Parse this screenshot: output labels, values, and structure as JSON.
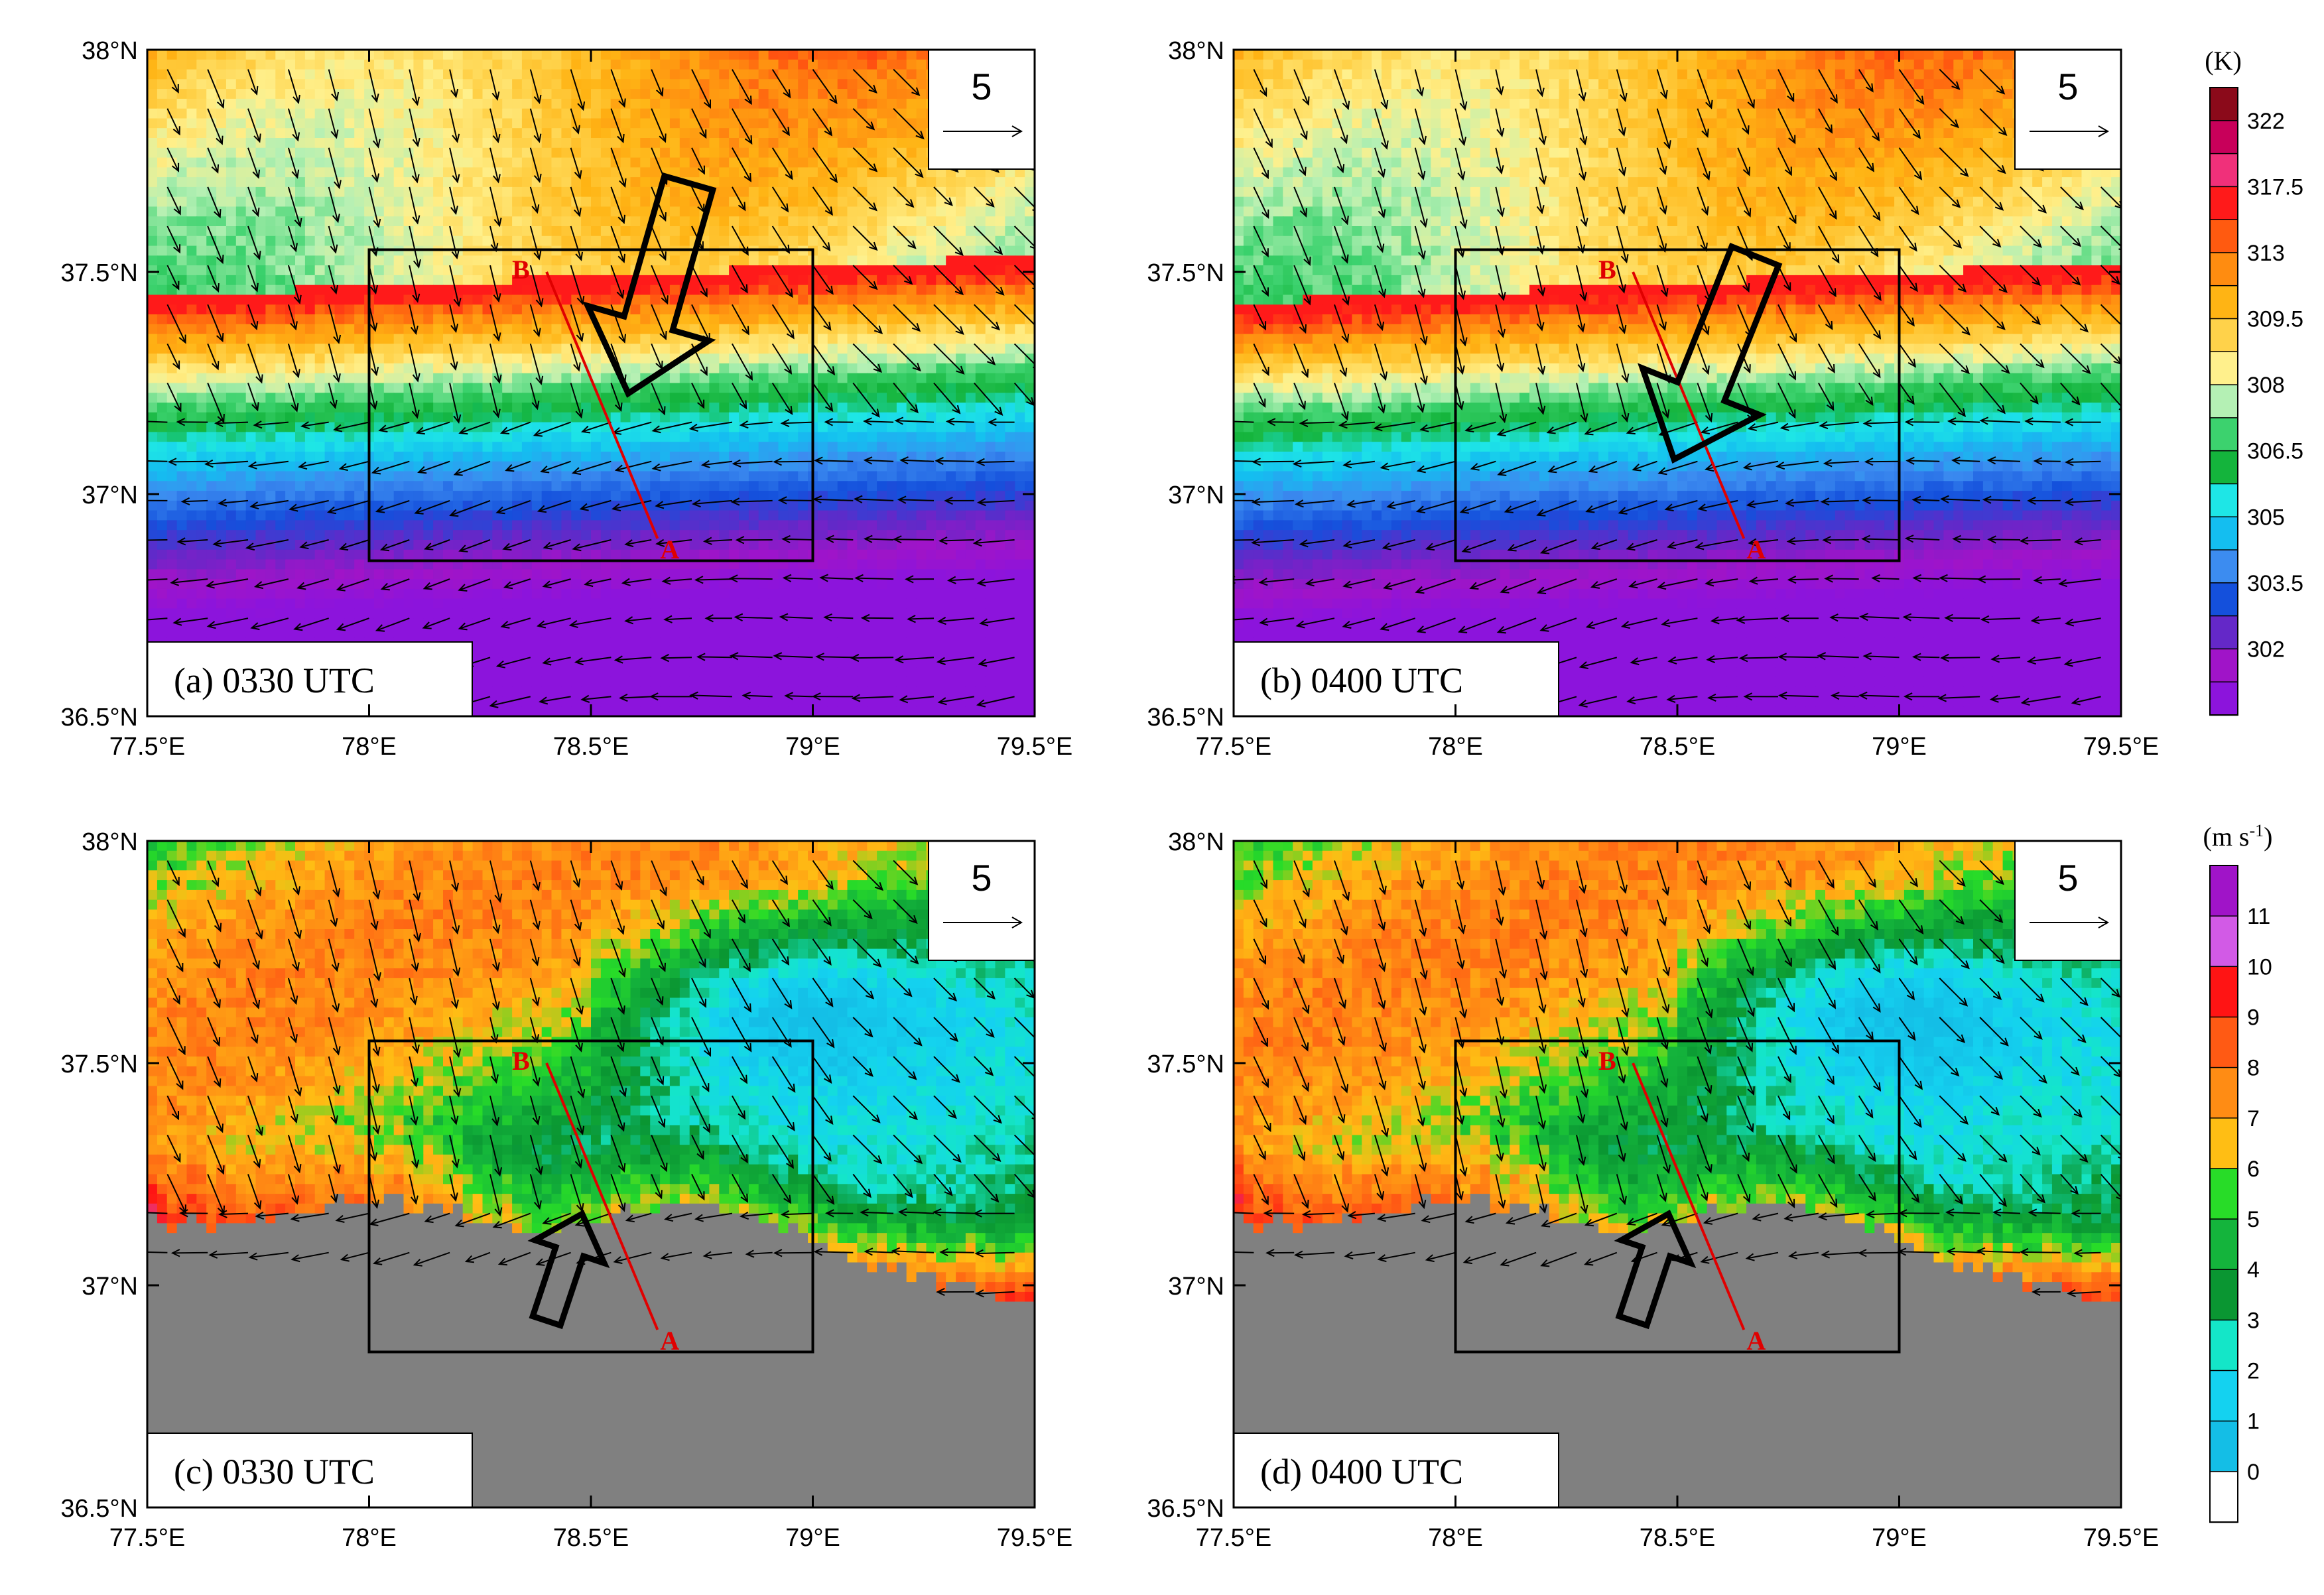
{
  "figure": {
    "panels": [
      {
        "id": "a",
        "label": "(a)  0330 UTC",
        "field": "temperature",
        "time": "0330 UTC"
      },
      {
        "id": "b",
        "label": "(b)  0400 UTC",
        "field": "temperature",
        "time": "0400 UTC"
      },
      {
        "id": "c",
        "label": "(c)  0330 UTC",
        "field": "wind_speed",
        "time": "0330 UTC"
      },
      {
        "id": "d",
        "label": "(d)  0400 UTC",
        "field": "wind_speed",
        "time": "0400 UTC"
      }
    ],
    "reference_vector": {
      "value": "5"
    },
    "section_points": {
      "start": "A",
      "end": "B"
    },
    "lon_ticks": [
      "77.5°E",
      "78°E",
      "78.5°E",
      "79°E",
      "79.5°E"
    ],
    "lat_ticks": [
      "38°N",
      "37.5°N",
      "37°N",
      "36.5°N"
    ],
    "lon_range": [
      77.5,
      79.5
    ],
    "lat_range": [
      36.5,
      38.0
    ],
    "analysis_box": {
      "lon": [
        78.0,
        79.0
      ],
      "lat": [
        36.85,
        37.55
      ]
    },
    "section_line": {
      "A": [
        78.65,
        36.9
      ],
      "B": [
        78.4,
        37.5
      ]
    }
  },
  "colorbars": {
    "temperature": {
      "unit": "(K)",
      "labels": [
        "322",
        "317.5",
        "313",
        "309.5",
        "308",
        "306.5",
        "305",
        "303.5",
        "302"
      ],
      "colors": [
        "#8b0a1a",
        "#c8005a",
        "#f0307a",
        "#ff1a1a",
        "#ff5a10",
        "#ff8c10",
        "#ffb414",
        "#ffd24a",
        "#fff08c",
        "#b4f0b4",
        "#3cd26e",
        "#14b43c",
        "#1ee6e6",
        "#14bef0",
        "#3c8cf0",
        "#1450dc",
        "#6428c8",
        "#a014c8",
        "#8c14dc"
      ]
    },
    "wind_speed": {
      "unit_base": "(m s",
      "unit_exp": "-1",
      "unit_close": ")",
      "labels": [
        "11",
        "10",
        "9",
        "8",
        "7",
        "6",
        "5",
        "4",
        "3",
        "2",
        "1",
        "0"
      ],
      "colors": [
        "#a014c8",
        "#d25ae6",
        "#ff1414",
        "#ff5a14",
        "#ff8c14",
        "#ffbe14",
        "#28dc28",
        "#14b43c",
        "#0a9632",
        "#14e6c8",
        "#14d2f0",
        "#14bee6",
        "#ffffff"
      ]
    }
  },
  "legend_colors": {
    "axis": "#000000",
    "terrain": "#808080",
    "section": "#e00000"
  }
}
